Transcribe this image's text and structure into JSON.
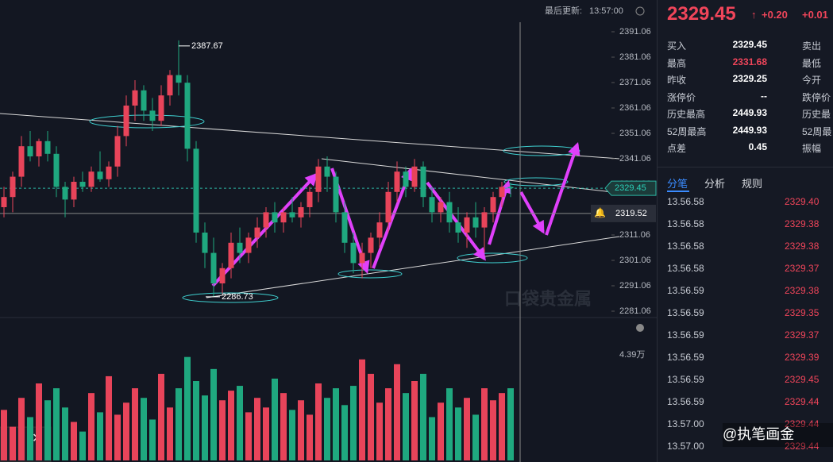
{
  "header": {
    "update_label": "最后更新:",
    "update_time": "13:57:00"
  },
  "chart_data": {
    "type": "candlestick",
    "open": [
      2322,
      2326,
      2334,
      2346,
      2342,
      2348,
      2343,
      2330,
      2325,
      2332,
      2330,
      2336,
      2333,
      2338,
      2350,
      2362,
      2368,
      2360,
      2356,
      2366,
      2374,
      2371,
      2345,
      2312,
      2304,
      2292,
      2298,
      2308,
      2304,
      2310,
      2314,
      2320,
      2316,
      2320,
      2318,
      2322,
      2328,
      2338,
      2334,
      2320,
      2308,
      2300,
      2304,
      2310,
      2316,
      2328,
      2336,
      2330,
      2338,
      2326,
      2320,
      2324,
      2316,
      2312,
      2318,
      2314,
      2320,
      2326,
      2330
    ],
    "high": [
      2330,
      2336,
      2350,
      2352,
      2349,
      2352,
      2346,
      2332,
      2334,
      2336,
      2338,
      2344,
      2340,
      2354,
      2366,
      2372,
      2370,
      2365,
      2370,
      2376,
      2387.67,
      2374,
      2348,
      2316,
      2310,
      2300,
      2312,
      2314,
      2312,
      2318,
      2322,
      2324,
      2322,
      2326,
      2324,
      2330,
      2341,
      2342,
      2336,
      2324,
      2312,
      2308,
      2312,
      2320,
      2332,
      2340,
      2338,
      2341,
      2340,
      2330,
      2326,
      2328,
      2322,
      2320,
      2324,
      2322,
      2328,
      2332,
      2331.68
    ],
    "low": [
      2318,
      2320,
      2330,
      2340,
      2338,
      2340,
      2326,
      2318,
      2322,
      2328,
      2328,
      2332,
      2330,
      2334,
      2346,
      2356,
      2356,
      2352,
      2354,
      2362,
      2366,
      2340,
      2308,
      2298,
      2286.73,
      2288,
      2294,
      2300,
      2300,
      2306,
      2310,
      2312,
      2312,
      2316,
      2314,
      2318,
      2324,
      2328,
      2316,
      2304,
      2296,
      2294,
      2298,
      2306,
      2312,
      2324,
      2326,
      2328,
      2322,
      2316,
      2316,
      2312,
      2308,
      2306,
      2310,
      2304,
      2316,
      2322,
      2326
    ],
    "close": [
      2326,
      2334,
      2346,
      2342,
      2348,
      2343,
      2330,
      2325,
      2332,
      2330,
      2336,
      2333,
      2338,
      2350,
      2362,
      2368,
      2360,
      2356,
      2366,
      2374,
      2371,
      2345,
      2312,
      2304,
      2292,
      2298,
      2308,
      2304,
      2310,
      2314,
      2320,
      2316,
      2320,
      2318,
      2322,
      2328,
      2338,
      2334,
      2320,
      2308,
      2300,
      2304,
      2310,
      2316,
      2328,
      2336,
      2330,
      2338,
      2326,
      2320,
      2324,
      2316,
      2312,
      2318,
      2314,
      2320,
      2326,
      2330,
      2329.45
    ],
    "ylim": [
      2278.56,
      2403.56
    ],
    "yticks": [
      2391.06,
      2381.06,
      2371.06,
      2361.06,
      2351.06,
      2341.06,
      2331.06,
      2321.06,
      2311.06,
      2301.06,
      2291.06,
      2281.06
    ],
    "crosshair_price": 2319.52,
    "up_color": "#e8445a",
    "down_color": "#1fa87f",
    "volume": {
      "values": [
        2.1,
        1.4,
        2.6,
        1.8,
        3.2,
        2.5,
        3.0,
        2.2,
        1.6,
        1.2,
        2.8,
        2.0,
        3.5,
        1.9,
        2.4,
        3.0,
        2.6,
        1.7,
        3.6,
        2.2,
        3.0,
        4.3,
        3.3,
        2.7,
        3.8,
        2.5,
        2.9,
        3.1,
        2.0,
        2.6,
        2.2,
        3.4,
        2.8,
        2.1,
        2.5,
        1.9,
        3.2,
        2.6,
        3.0,
        2.3,
        3.1,
        4.2,
        3.6,
        2.4,
        3.0,
        4.0,
        2.8,
        3.3,
        3.6,
        1.8,
        2.4,
        3.0,
        2.2,
        2.6,
        1.9,
        3.0,
        2.5,
        2.8,
        3.0
      ],
      "ylim": [
        0,
        5.61
      ],
      "yticks": [
        {
          "value": 4.39,
          "label": "4.39万"
        }
      ]
    },
    "watermark": "口袋贵金属"
  },
  "quote": {
    "price": 2329.45,
    "change": "+0.20",
    "change_pct": "+0.01",
    "rows": [
      [
        "买入",
        "2329.45",
        "卖出"
      ],
      [
        "最高",
        "2331.68",
        "最低"
      ],
      [
        "昨收",
        "2329.25",
        "今开"
      ],
      [
        "涨停价",
        "--",
        "跌停价"
      ],
      [
        "历史最高",
        "2449.93",
        "历史最"
      ],
      [
        "52周最高",
        "2449.93",
        "52周最"
      ],
      [
        "点差",
        "0.45",
        "振幅"
      ]
    ]
  },
  "tabs": [
    "分笔",
    "分析",
    "规则"
  ],
  "trades": [
    {
      "time": "13.56.58",
      "price": "2329.40"
    },
    {
      "time": "13.56.58",
      "price": "2329.38"
    },
    {
      "time": "13.56.58",
      "price": "2329.38"
    },
    {
      "time": "13.56.58",
      "price": "2329.37"
    },
    {
      "time": "13.56.59",
      "price": "2329.38"
    },
    {
      "time": "13.56.59",
      "price": "2329.35"
    },
    {
      "time": "13.56.59",
      "price": "2329.37"
    },
    {
      "time": "13.56.59",
      "price": "2329.39"
    },
    {
      "time": "13.56.59",
      "price": "2329.45"
    },
    {
      "time": "13.56.59",
      "price": "2329.44"
    },
    {
      "time": "13.57.00",
      "price": "2329.44"
    },
    {
      "time": "13.57.00",
      "price": "2329.44"
    }
  ],
  "footer": {
    "credit": "@执笔画金"
  }
}
